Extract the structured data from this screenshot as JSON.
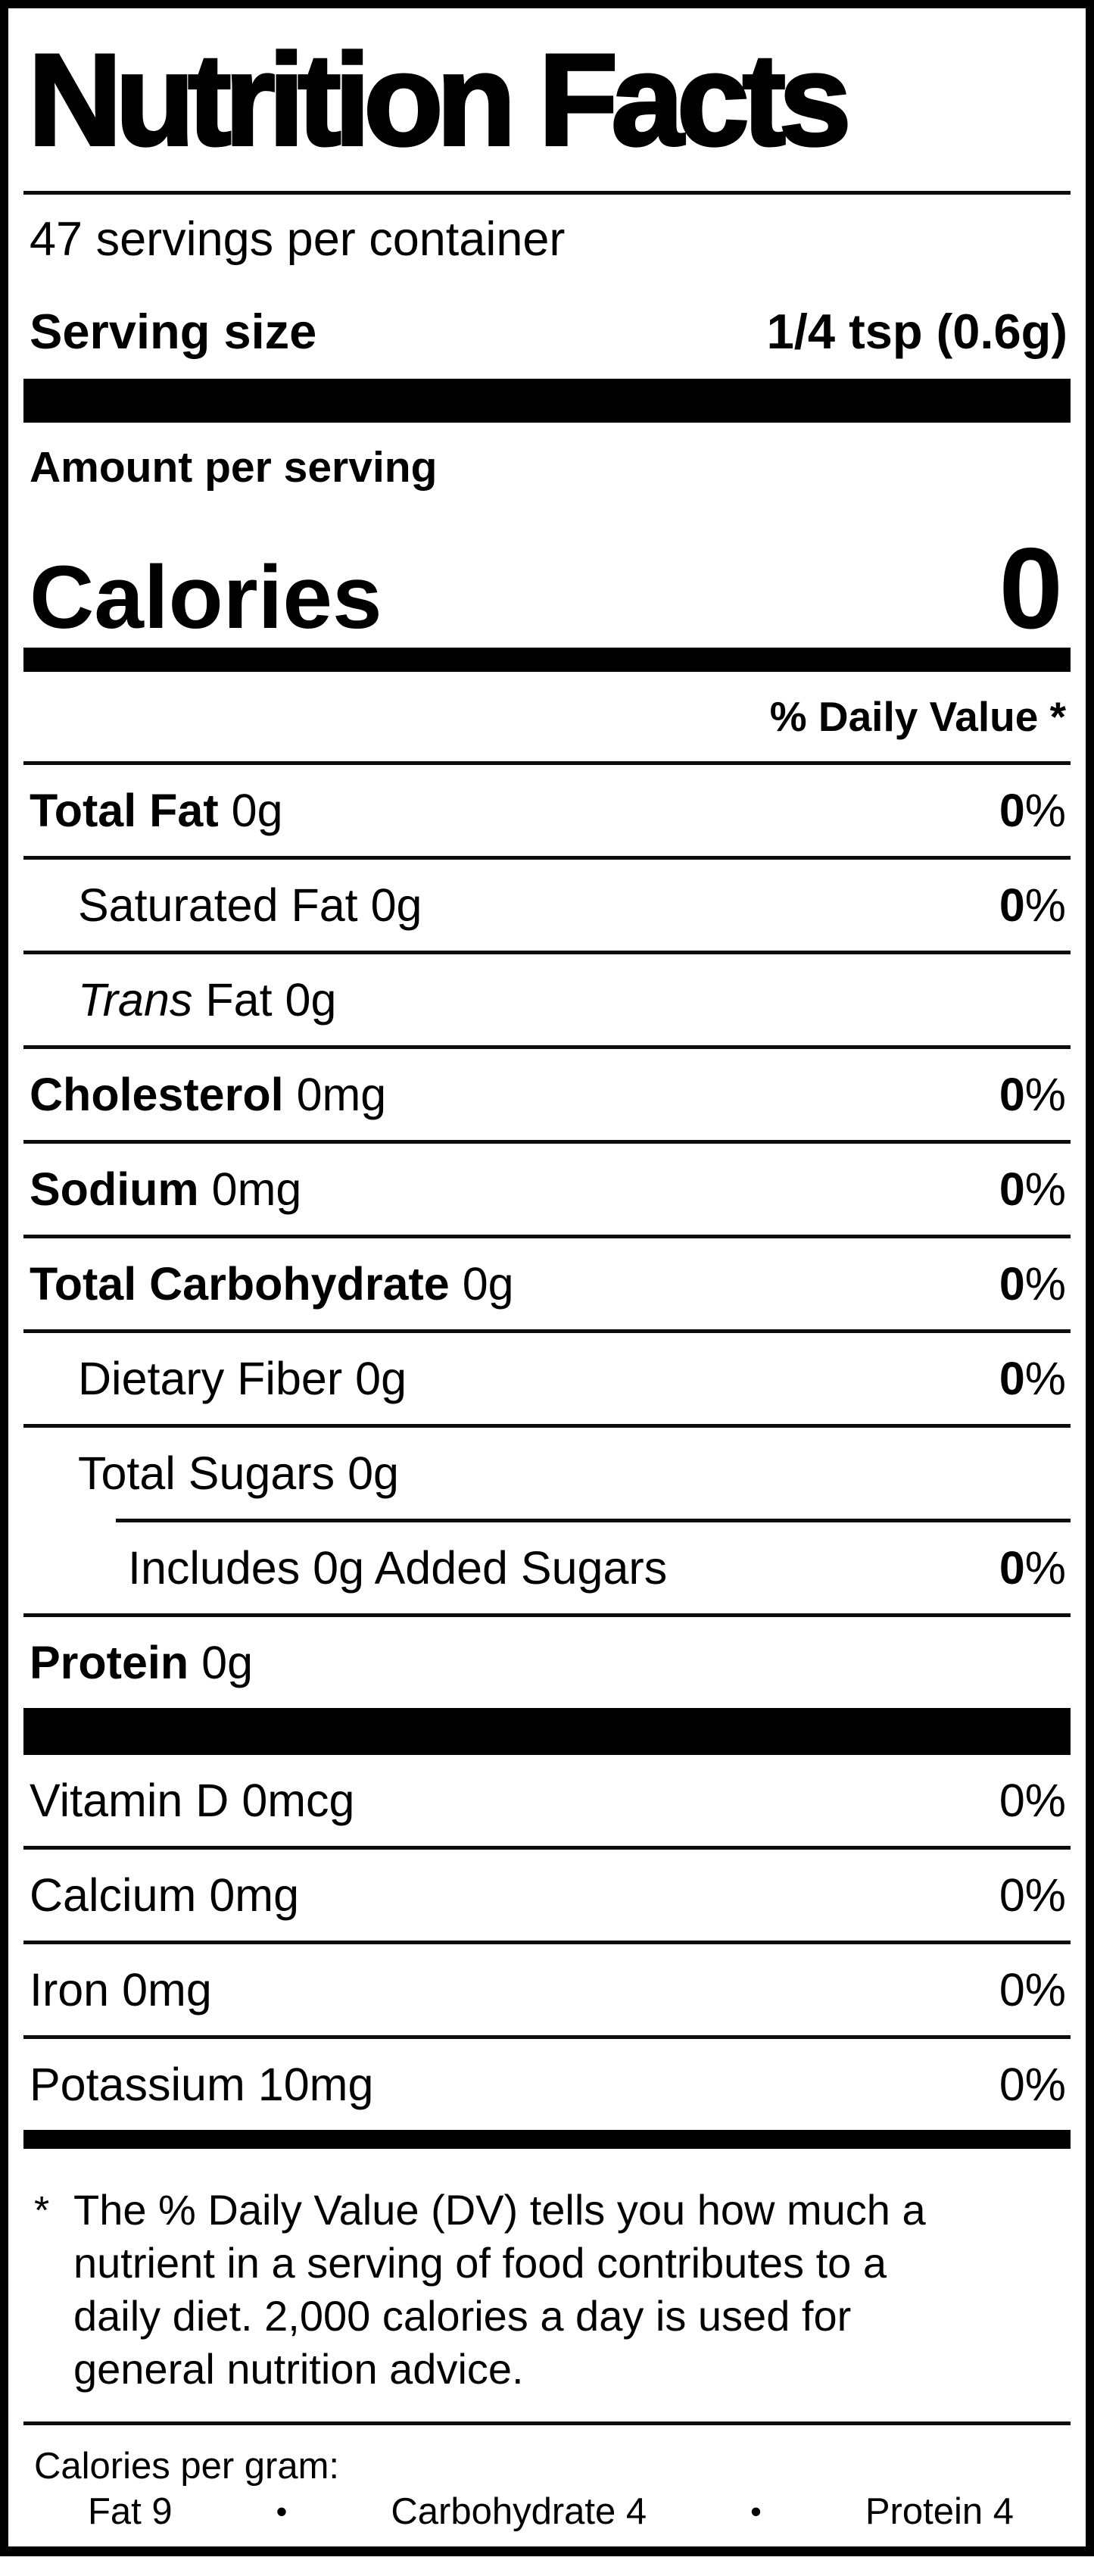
{
  "colors": {
    "text": "#000000",
    "background": "#ffffff",
    "rule": "#000000"
  },
  "header": {
    "title": "Nutrition Facts",
    "servings_per_container": "47 servings per container",
    "serving_size_label": "Serving size",
    "serving_size_value": "1/4 tsp (0.6g)"
  },
  "calories_section": {
    "amount_per_serving": "Amount per serving",
    "calories_label": "Calories",
    "calories_value": "0"
  },
  "daily_value_header": "% Daily Value *",
  "nutrients": [
    {
      "name": "Total Fat",
      "amount": "0g",
      "dv": "0",
      "dv_unit": "%"
    },
    {
      "name": "Saturated Fat",
      "amount": "0g",
      "dv": "0",
      "dv_unit": "%"
    },
    {
      "name_italic": "Trans",
      "name": "Fat",
      "amount": "0g"
    },
    {
      "name": "Cholesterol",
      "amount": "0mg",
      "dv": "0",
      "dv_unit": "%"
    },
    {
      "name": "Sodium",
      "amount": "0mg",
      "dv": "0",
      "dv_unit": "%"
    },
    {
      "name": "Total Carbohydrate",
      "amount": "0g",
      "dv": "0",
      "dv_unit": "%"
    },
    {
      "name": "Dietary Fiber",
      "amount": "0g",
      "dv": "0",
      "dv_unit": "%"
    },
    {
      "name": "Total Sugars",
      "amount": "0g"
    },
    {
      "name": "Includes 0g Added Sugars",
      "dv": "0",
      "dv_unit": "%"
    },
    {
      "name": "Protein",
      "amount": "0g"
    }
  ],
  "micronutrients": [
    {
      "name": "Vitamin D",
      "amount": "0mcg",
      "dv": "0",
      "dv_unit": "%"
    },
    {
      "name": "Calcium",
      "amount": "0mg",
      "dv": "0",
      "dv_unit": "%"
    },
    {
      "name": "Iron",
      "amount": "0mg",
      "dv": "0",
      "dv_unit": "%"
    },
    {
      "name": "Potassium",
      "amount": "10mg",
      "dv": "0",
      "dv_unit": "%"
    }
  ],
  "footnote": {
    "marker": "*",
    "lines": [
      "The % Daily Value (DV) tells you how much a",
      "nutrient in a serving of food contributes to a",
      "daily diet. 2,000 calories a day is used for",
      "general nutrition advice."
    ]
  },
  "calories_per_gram": {
    "title": "Calories per gram:",
    "bullet": "•",
    "items": [
      "Fat 9",
      "Carbohydrate 4",
      "Protein 4"
    ]
  }
}
